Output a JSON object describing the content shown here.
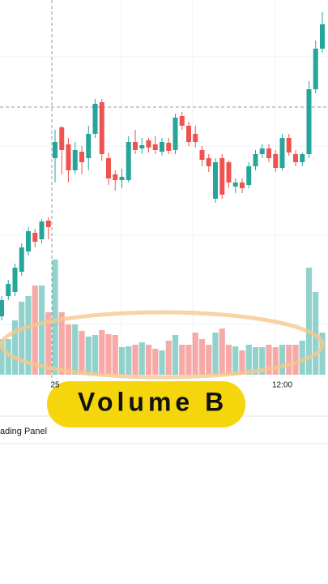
{
  "chart_data": {
    "type": "candlestick",
    "categories": [
      null,
      null,
      null,
      null,
      null,
      null,
      null,
      null,
      "25",
      null,
      null,
      null,
      null,
      null,
      null,
      null,
      null,
      null,
      null,
      null,
      null,
      null,
      null,
      null,
      null,
      null,
      null,
      null,
      null,
      null,
      null,
      null,
      null,
      null,
      null,
      null,
      null,
      null,
      null,
      null,
      null,
      null,
      "12:00",
      null,
      null,
      null,
      null,
      null,
      null
    ],
    "open": [
      70,
      95,
      100,
      125,
      150,
      173,
      165,
      188,
      265,
      303,
      282,
      250,
      273,
      265,
      295,
      334,
      265,
      245,
      238,
      238,
      285,
      277,
      287,
      282,
      273,
      284,
      275,
      317,
      305,
      295,
      275,
      265,
      215,
      265,
      260,
      230,
      235,
      232,
      255,
      270,
      277,
      270,
      253,
      290,
      270,
      260,
      270,
      350,
      400
    ],
    "high": [
      95,
      115,
      135,
      160,
      180,
      178,
      190,
      192,
      300,
      305,
      290,
      285,
      280,
      305,
      338,
      338,
      272,
      250,
      252,
      292,
      300,
      290,
      290,
      292,
      290,
      290,
      320,
      322,
      310,
      305,
      280,
      270,
      265,
      270,
      262,
      240,
      240,
      260,
      275,
      282,
      282,
      275,
      295,
      295,
      275,
      272,
      360,
      410,
      445
    ],
    "low": [
      65,
      90,
      95,
      120,
      145,
      155,
      160,
      165,
      235,
      245,
      235,
      245,
      245,
      250,
      290,
      262,
      232,
      225,
      228,
      235,
      270,
      270,
      272,
      270,
      268,
      270,
      270,
      300,
      280,
      278,
      255,
      248,
      210,
      215,
      228,
      222,
      222,
      228,
      250,
      265,
      260,
      248,
      250,
      268,
      255,
      255,
      265,
      345,
      395
    ],
    "close": [
      90,
      110,
      130,
      155,
      175,
      162,
      187,
      180,
      285,
      275,
      250,
      275,
      260,
      295,
      332,
      270,
      240,
      238,
      242,
      285,
      275,
      281,
      278,
      275,
      285,
      274,
      315,
      305,
      285,
      285,
      263,
      255,
      260,
      220,
      235,
      235,
      228,
      255,
      270,
      277,
      265,
      253,
      290,
      272,
      260,
      270,
      350,
      400,
      430
    ],
    "volume": [
      44,
      44,
      67,
      90,
      97,
      110,
      110,
      77,
      142,
      77,
      62,
      62,
      54,
      47,
      49,
      55,
      50,
      49,
      34,
      35,
      37,
      40,
      37,
      32,
      30,
      42,
      49,
      37,
      37,
      52,
      44,
      37,
      52,
      57,
      37,
      35,
      30,
      37,
      34,
      34,
      37,
      34,
      37,
      37,
      37,
      42,
      132,
      102,
      52
    ],
    "up_color": "#26a69a",
    "down_color": "#ef5350",
    "ylim": [
      0,
      460
    ],
    "volume_lim": [
      0,
      150
    ]
  },
  "overlay": {
    "caption": "Volume B",
    "panel_label": "ading Panel"
  }
}
